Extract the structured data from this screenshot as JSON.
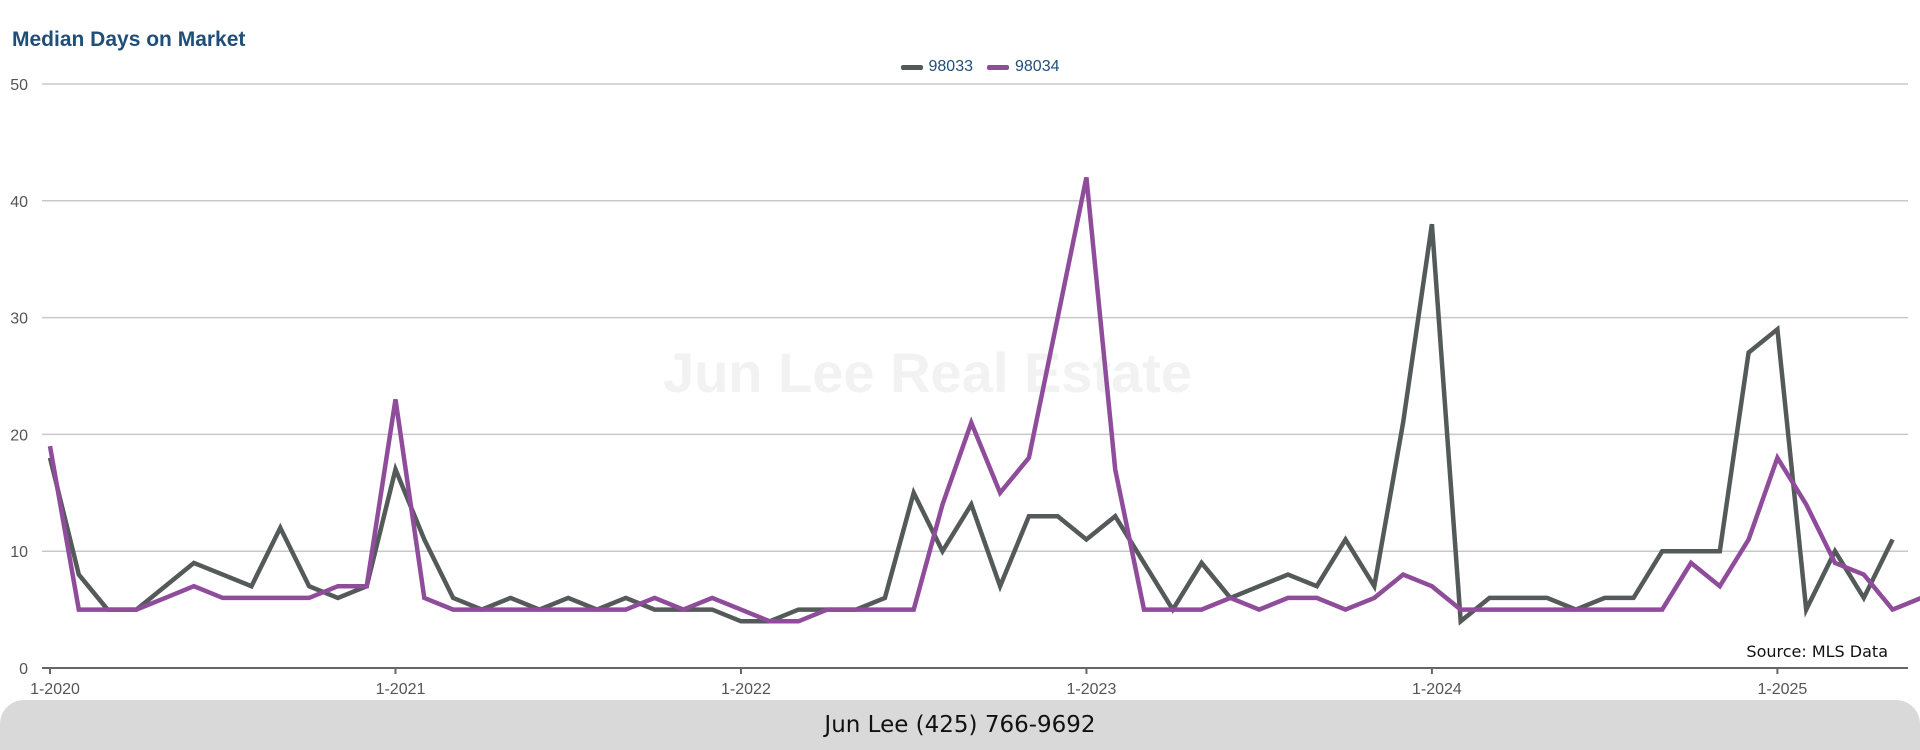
{
  "footer": {
    "contact": "Jun Lee (425) 766-9692"
  },
  "watermark": "Jun Lee Real Estate",
  "source": "Source: MLS Data",
  "chart_data": {
    "type": "line",
    "title": "Median Days on Market",
    "xlabel": "",
    "ylabel": "",
    "ylim": [
      0,
      50
    ],
    "yticks": [
      0,
      10,
      20,
      30,
      40,
      50
    ],
    "xticks": [
      "1-2020",
      "1-2021",
      "1-2022",
      "1-2023",
      "1-2024",
      "1-2025"
    ],
    "grid": "horizontal",
    "legend_position": "top-center",
    "x_start": "1-2020",
    "x_step": "1 month",
    "series": [
      {
        "name": "98033",
        "color": "#535a59",
        "values": [
          18,
          8,
          5,
          5,
          7,
          9,
          8,
          7,
          12,
          7,
          6,
          7,
          17,
          11,
          6,
          5,
          6,
          5,
          6,
          5,
          6,
          5,
          5,
          5,
          4,
          4,
          5,
          5,
          5,
          6,
          15,
          10,
          14,
          7,
          13,
          13,
          11,
          13,
          9,
          5,
          9,
          6,
          7,
          8,
          7,
          11,
          7,
          21,
          38,
          4,
          6,
          6,
          6,
          5,
          6,
          6,
          10,
          10,
          10,
          27,
          29,
          5,
          10,
          6,
          11
        ]
      },
      {
        "name": "98034",
        "color": "#8e4c9a",
        "values": [
          19,
          5,
          5,
          5,
          6,
          7,
          6,
          6,
          6,
          6,
          7,
          7,
          23,
          6,
          5,
          5,
          5,
          5,
          5,
          5,
          5,
          6,
          5,
          6,
          5,
          4,
          4,
          5,
          5,
          5,
          5,
          14,
          21,
          15,
          18,
          30,
          42,
          17,
          5,
          5,
          5,
          6,
          5,
          6,
          6,
          5,
          6,
          8,
          7,
          5,
          5,
          5,
          5,
          5,
          5,
          5,
          5,
          9,
          7,
          11,
          18,
          14,
          9,
          8,
          5,
          6
        ]
      }
    ]
  }
}
